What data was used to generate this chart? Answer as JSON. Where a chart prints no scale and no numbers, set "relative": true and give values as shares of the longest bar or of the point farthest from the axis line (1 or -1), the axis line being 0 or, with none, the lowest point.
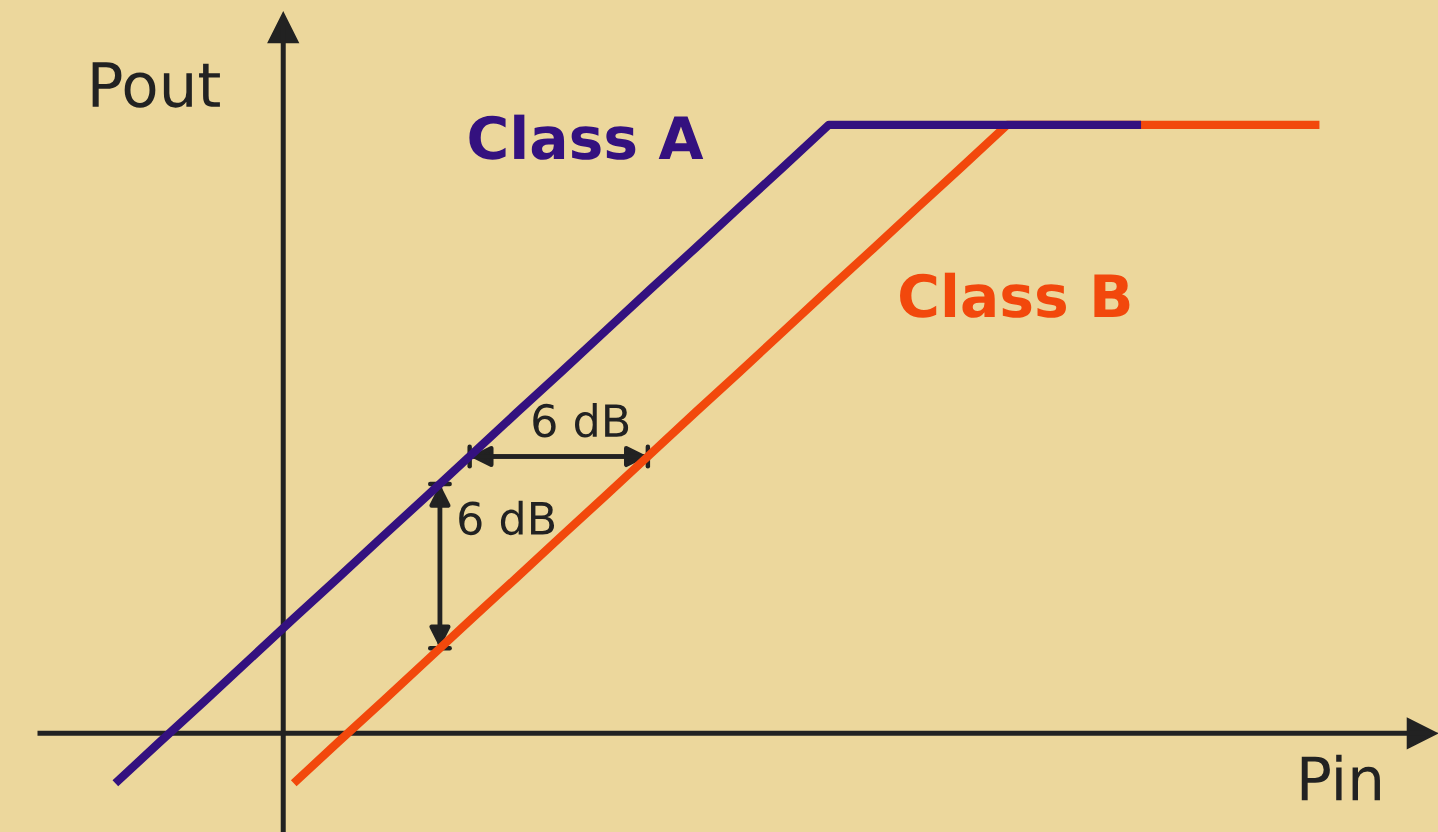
{
  "chart_data": {
    "type": "line",
    "relative": true,
    "xlabel": "Pin",
    "ylabel": "Pout",
    "categories": [
      null,
      null,
      null,
      null,
      null,
      null,
      null,
      null,
      null,
      null,
      null,
      null,
      null,
      null,
      null,
      null,
      null,
      null,
      null,
      null,
      null,
      null,
      null,
      null,
      null,
      null,
      null,
      null
    ],
    "series": [
      {
        "name": "Class A",
        "color": "#34117f",
        "values": [
          -0.082,
          -0.014,
          0.053,
          0.121,
          0.189,
          0.256,
          0.324,
          0.391,
          0.459,
          0.527,
          0.594,
          0.662,
          0.73,
          0.797,
          0.865,
          0.932,
          1,
          1,
          1,
          1,
          1,
          1,
          1,
          1,
          null,
          null,
          null,
          null
        ]
      },
      {
        "name": "Class B",
        "color": "#f2480c",
        "values": [
          null,
          null,
          null,
          null,
          -0.082,
          -0.014,
          0.053,
          0.121,
          0.189,
          0.256,
          0.324,
          0.391,
          0.459,
          0.527,
          0.594,
          0.662,
          0.73,
          0.797,
          0.865,
          0.932,
          1,
          1,
          1,
          1,
          1,
          1,
          1,
          1
        ]
      }
    ],
    "annotations": [
      "6 dB",
      "6 dB"
    ],
    "marker": "none",
    "line_style": "solid"
  }
}
